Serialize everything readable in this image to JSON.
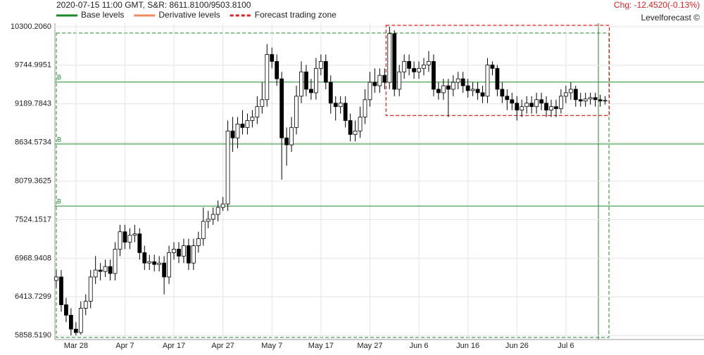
{
  "chart_data": {
    "type": "candlestick",
    "header": "2020-07-15 11:00 GMT,  S&R: 8611.8100/9503.8100",
    "change": "Chg: -12.4520(-0.13%)",
    "brand": "Levelforecast ©",
    "legend": [
      {
        "name": "Base levels",
        "color": "#1a8a2a",
        "style": "solid"
      },
      {
        "name": "Derivative levels",
        "color": "#f08a60",
        "style": "solid"
      },
      {
        "name": "Forecast trading zone",
        "color": "#e02020",
        "style": "dashed"
      }
    ],
    "categories": [
      null,
      null,
      null,
      null,
      "Mar 28",
      null,
      null,
      null,
      null,
      null,
      null,
      null,
      null,
      null,
      "Apr 7",
      null,
      null,
      null,
      null,
      null,
      null,
      null,
      null,
      null,
      "Apr 17",
      null,
      null,
      null,
      null,
      null,
      null,
      null,
      null,
      null,
      "Apr 27",
      null,
      null,
      null,
      null,
      null,
      null,
      null,
      null,
      null,
      "May 7",
      null,
      null,
      null,
      null,
      null,
      null,
      null,
      null,
      null,
      "May 17",
      null,
      null,
      null,
      null,
      null,
      null,
      null,
      null,
      null,
      "May 27",
      null,
      null,
      null,
      null,
      null,
      null,
      null,
      null,
      null,
      "Jun 6",
      null,
      null,
      null,
      null,
      null,
      null,
      null,
      null,
      null,
      "Jun 16",
      null,
      null,
      null,
      null,
      null,
      null,
      null,
      null,
      null,
      "Jun 26",
      null,
      null,
      null,
      null,
      null,
      null,
      null,
      null,
      null,
      "Jul 6",
      null,
      null,
      null,
      null,
      null,
      null,
      null,
      null
    ],
    "open": [
      6650,
      6700,
      6300,
      6150,
      5950,
      5900,
      6250,
      6350,
      6700,
      6800,
      6780,
      6850,
      6750,
      7100,
      7350,
      7200,
      7300,
      7320,
      7050,
      6900,
      6920,
      6880,
      6900,
      6700,
      7050,
      7100,
      7000,
      7150,
      6900,
      7150,
      7250,
      7500,
      7530,
      7600,
      7700,
      7750,
      8800,
      8700,
      8900,
      8850,
      8950,
      9000,
      9150,
      9250,
      9900,
      9800,
      9550,
      8700,
      8600,
      8850,
      9300,
      9650,
      9400,
      9350,
      9700,
      9800,
      9500,
      9200,
      9150,
      9200,
      8950,
      8750,
      8800,
      9000,
      9250,
      9500,
      9450,
      9600,
      9500,
      10200,
      9400,
      9650,
      9800,
      9700,
      9650,
      9700,
      9750,
      9800,
      9400,
      9350,
      9450,
      9400,
      9500,
      9550,
      9450,
      9380,
      9400,
      9350,
      9300,
      9750,
      9700,
      9400,
      9300,
      9250,
      9200,
      9100,
      9150,
      9200,
      9150,
      9250,
      9200,
      9100,
      9150,
      9120,
      9300,
      9350,
      9400,
      9250,
      9230,
      9260,
      9280,
      9250,
      9230
    ],
    "high": [
      6800,
      6800,
      6400,
      6250,
      6050,
      6350,
      6450,
      6800,
      7000,
      6900,
      6950,
      6950,
      7200,
      7450,
      7450,
      7400,
      7450,
      7400,
      7150,
      7020,
      7020,
      7000,
      7000,
      7150,
      7200,
      7200,
      7250,
      7250,
      7250,
      7350,
      7700,
      7650,
      7700,
      7800,
      7850,
      8950,
      9000,
      9000,
      9100,
      9050,
      9100,
      9300,
      9500,
      10050,
      10000,
      9900,
      9650,
      8850,
      9000,
      9450,
      9800,
      9750,
      9550,
      9850,
      9900,
      9900,
      9600,
      9300,
      9300,
      9300,
      9050,
      8950,
      9150,
      9400,
      9650,
      9700,
      9700,
      9700,
      10300,
      10250,
      9750,
      9900,
      9900,
      9800,
      9800,
      9850,
      9950,
      9900,
      9500,
      9550,
      9550,
      9600,
      9650,
      9650,
      9550,
      9500,
      9500,
      9450,
      9850,
      9800,
      9750,
      9500,
      9400,
      9350,
      9300,
      9250,
      9300,
      9300,
      9350,
      9350,
      9300,
      9250,
      9250,
      9400,
      9450,
      9500,
      9450,
      9350,
      9350,
      9350,
      9350,
      9320,
      9300
    ],
    "low": [
      6550,
      6200,
      6050,
      5860,
      5860,
      5870,
      6150,
      6250,
      6600,
      6650,
      6700,
      6650,
      6650,
      7000,
      7100,
      7100,
      7200,
      6950,
      6800,
      6800,
      6780,
      6780,
      6450,
      6600,
      6950,
      6900,
      6900,
      6800,
      6800,
      7050,
      7150,
      7400,
      7450,
      7500,
      7650,
      7650,
      8500,
      8550,
      8750,
      8750,
      8850,
      8900,
      9050,
      9150,
      9700,
      9450,
      8100,
      8300,
      8500,
      8750,
      9200,
      9300,
      9250,
      9250,
      9600,
      9400,
      9050,
      8950,
      9050,
      8850,
      8650,
      8650,
      8700,
      8900,
      9150,
      9350,
      9350,
      9400,
      9400,
      9300,
      9300,
      9550,
      9600,
      9550,
      9550,
      9600,
      9650,
      9300,
      9250,
      9250,
      9000,
      9300,
      9400,
      9350,
      9280,
      9300,
      9250,
      9200,
      9200,
      9600,
      9300,
      9200,
      9100,
      9100,
      8950,
      9000,
      9050,
      9050,
      9050,
      9100,
      9000,
      9000,
      9000,
      9050,
      9200,
      9250,
      9150,
      9150,
      9150,
      9180,
      9150,
      9150,
      9180
    ],
    "close": [
      6700,
      6300,
      6150,
      5950,
      5900,
      6250,
      6350,
      6700,
      6800,
      6780,
      6850,
      6750,
      7100,
      7350,
      7200,
      7300,
      7320,
      7050,
      6900,
      6920,
      6880,
      6900,
      6700,
      7050,
      7100,
      7000,
      7150,
      6900,
      7150,
      7250,
      7500,
      7530,
      7600,
      7700,
      7750,
      8800,
      8700,
      8900,
      8850,
      8950,
      9000,
      9150,
      9250,
      9900,
      9800,
      9550,
      8700,
      8600,
      8850,
      9300,
      9650,
      9400,
      9350,
      9700,
      9800,
      9500,
      9200,
      9150,
      9200,
      8950,
      8750,
      8800,
      9000,
      9250,
      9500,
      9450,
      9600,
      9500,
      10200,
      9400,
      9650,
      9800,
      9700,
      9650,
      9700,
      9750,
      9800,
      9400,
      9350,
      9450,
      9400,
      9500,
      9550,
      9450,
      9380,
      9400,
      9350,
      9300,
      9750,
      9700,
      9400,
      9300,
      9250,
      9200,
      9100,
      9150,
      9200,
      9150,
      9250,
      9200,
      9100,
      9150,
      9120,
      9300,
      9350,
      9400,
      9250,
      9230,
      9260,
      9280,
      9250,
      9230,
      9240
    ],
    "levels": {
      "label": "B",
      "values": [
        9503.81,
        8611.81,
        7719.81
      ]
    },
    "forecast_zone": {
      "start": 67,
      "end": 112,
      "high": 10320,
      "low": 9022
    },
    "ylim": [
      5800,
      10350
    ],
    "yticks": [
      {
        "value": 5858.519,
        "label": "5858.5190"
      },
      {
        "value": 6413.7299,
        "label": "6413.7299"
      },
      {
        "value": 6968.9408,
        "label": "6968.9408"
      },
      {
        "value": 7524.1517,
        "label": "7524.1517"
      },
      {
        "value": 8079.3625,
        "label": "8079.3625"
      },
      {
        "value": 8634.5734,
        "label": "8634.5734"
      },
      {
        "value": 9189.7843,
        "label": "9189.7843"
      },
      {
        "value": 9744.9951,
        "label": "9744.9951"
      },
      {
        "value": 10300.206,
        "label": "10300.2060"
      }
    ],
    "grid": true
  }
}
